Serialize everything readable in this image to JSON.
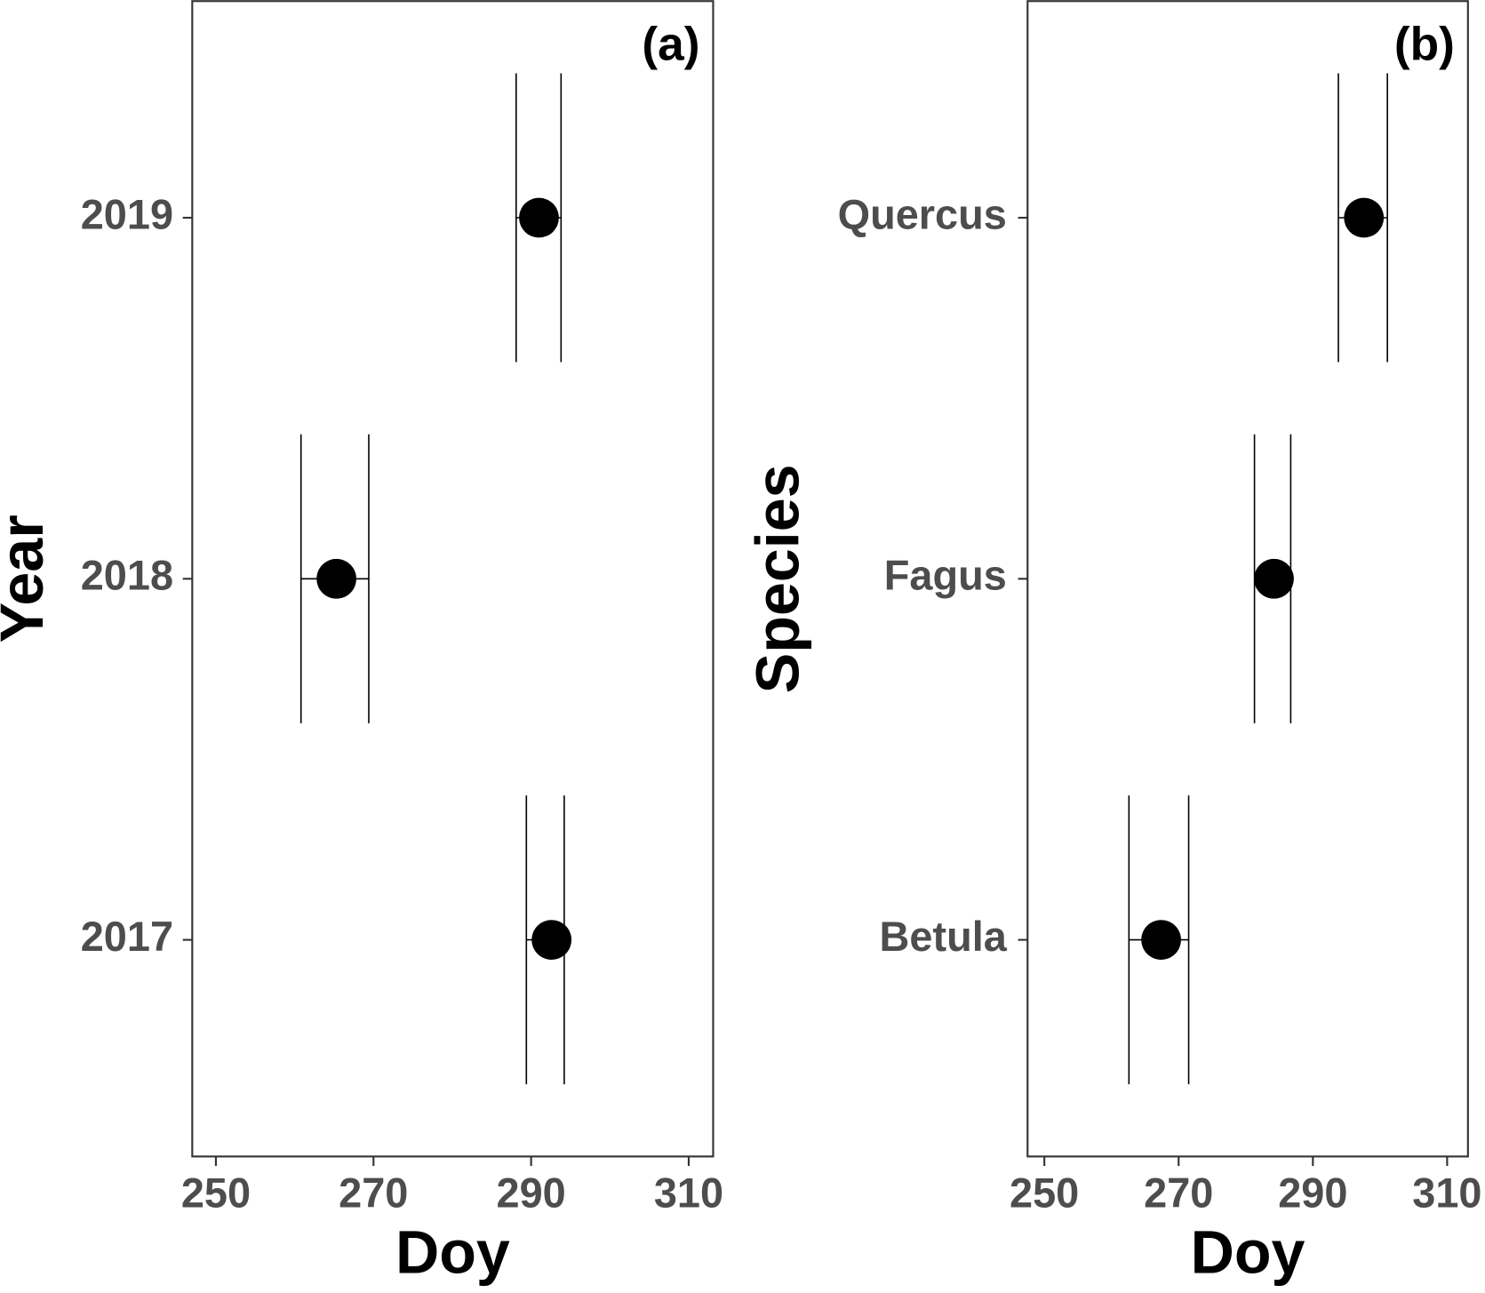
{
  "chart_data": [
    {
      "type": "errorbar",
      "panel_label": "(a)",
      "xlabel": "Doy",
      "ylabel": "Year",
      "categories": [
        "2017",
        "2018",
        "2019"
      ],
      "values": [
        292.6,
        265.3,
        291.0
      ],
      "lower": [
        289.4,
        260.8,
        288.1
      ],
      "upper": [
        294.2,
        269.4,
        293.8
      ],
      "color": "#000000",
      "xlim": [
        247,
        313.1
      ],
      "xticks": [
        250,
        270,
        290,
        310
      ]
    },
    {
      "type": "errorbar",
      "panel_label": "(b)",
      "xlabel": "Doy",
      "ylabel": "Species",
      "categories": [
        "Betula",
        "Fagus",
        "Quercus"
      ],
      "values": [
        267.4,
        284.2,
        297.6
      ],
      "lower": [
        262.6,
        281.3,
        293.8
      ],
      "upper": [
        271.5,
        286.7,
        301.1
      ],
      "color": "#000000",
      "xlim": [
        247.5,
        313.1
      ],
      "xticks": [
        250,
        270,
        290,
        310
      ]
    }
  ]
}
